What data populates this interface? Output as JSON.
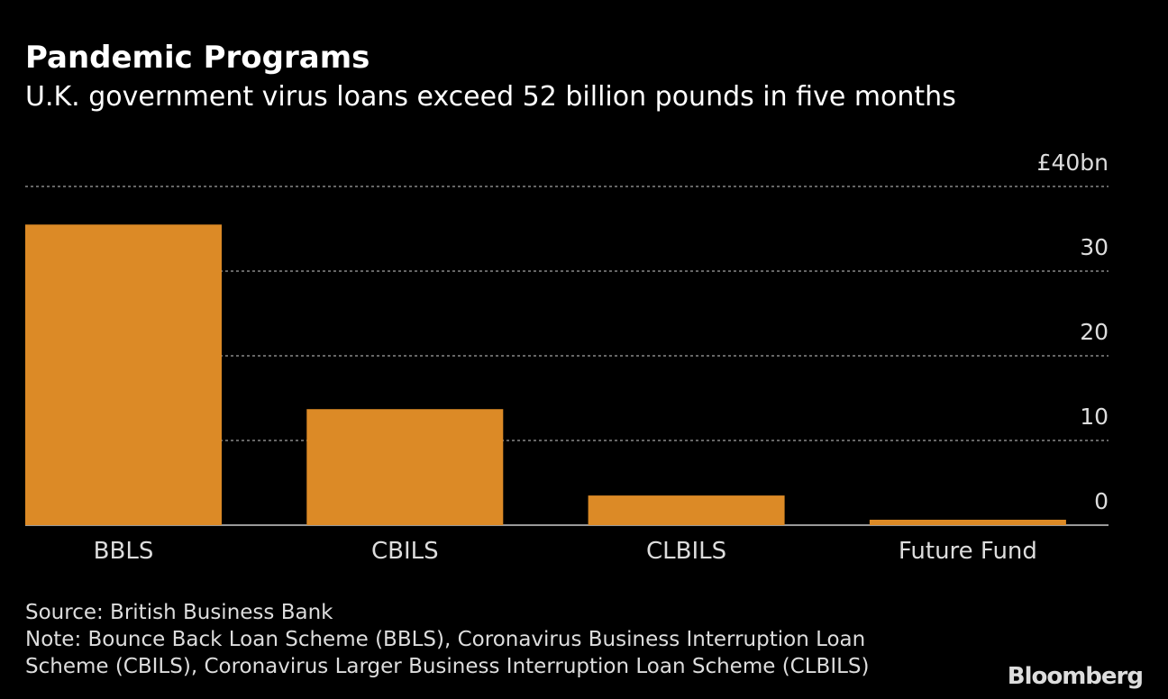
{
  "chart_data": {
    "type": "bar",
    "title": "Pandemic Programs",
    "subtitle": "U.K. government virus loans exceed 52 billion pounds in five months",
    "categories": [
      "BBLS",
      "CBILS",
      "CLBILS",
      "Future Fund"
    ],
    "values": [
      35.5,
      13.7,
      3.5,
      0.64
    ],
    "color": "#dc8a26",
    "ylim": [
      0,
      40
    ],
    "yticks": [
      0,
      10,
      20,
      30,
      {
        "value": 40,
        "label": "£40bn"
      }
    ],
    "grid": true,
    "source": "Source: British Business Bank",
    "note": [
      "Note: Bounce Back Loan Scheme (BBLS), Coronavirus Business Interruption Loan",
      "Scheme (CBILS), Coronavirus Larger Business Interruption Loan Scheme (CLBILS)"
    ],
    "logo": "Bloomberg"
  }
}
